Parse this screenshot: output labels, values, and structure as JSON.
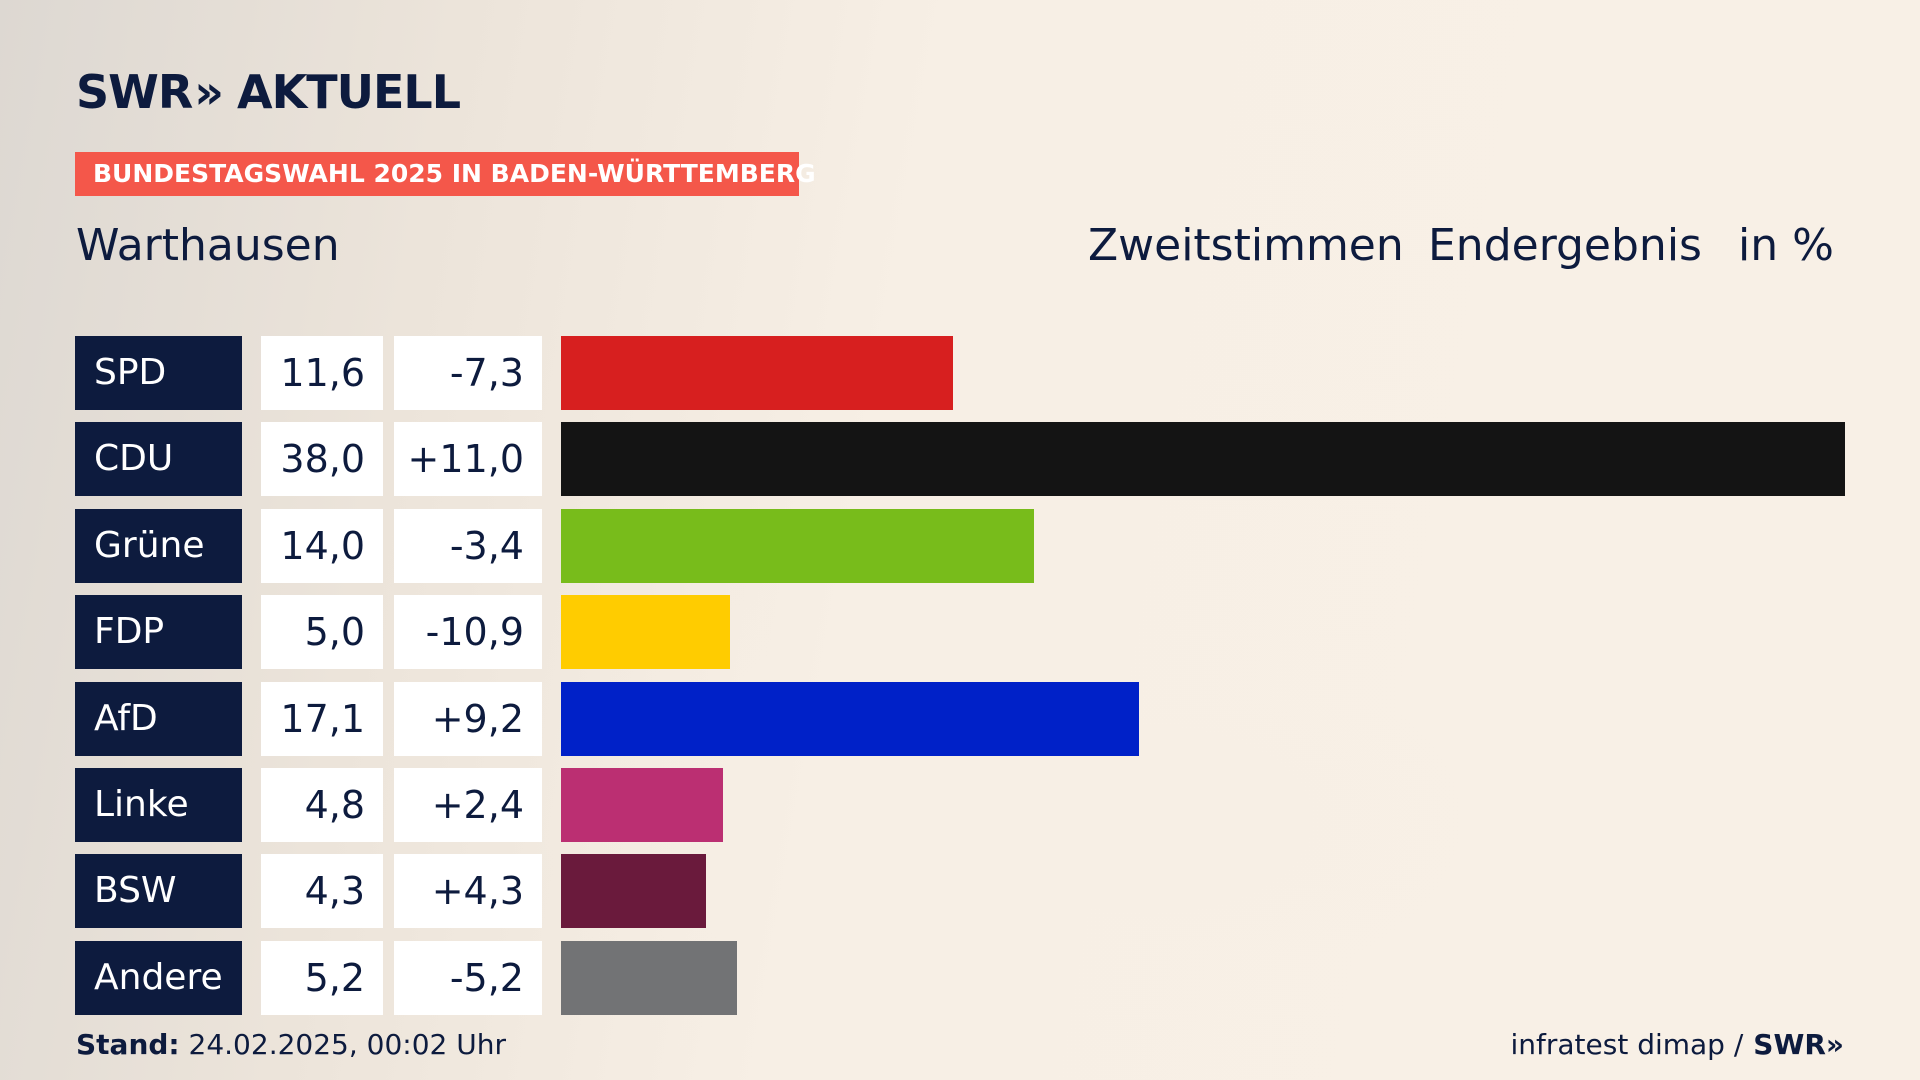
{
  "brand": {
    "name": "SWR",
    "chevrons": "»",
    "product": "AKTUELL"
  },
  "banner": "BUNDESTAGSWAHL 2025 IN BADEN-WÜRTTEMBERG",
  "place": "Warthausen",
  "headers": {
    "vote_type": "Zweitstimmen",
    "status": "Endergebnis",
    "unit": "in %"
  },
  "footer": {
    "stand_label": "Stand:",
    "stand_value": "24.02.2025, 00:02 Uhr",
    "source": "infratest dimap /",
    "source_brand": "SWR»"
  },
  "colors": {
    "navy": "#0d1b3e",
    "banner": "#f4574a"
  },
  "chart_data": {
    "type": "bar",
    "orientation": "horizontal",
    "categories": [
      "SPD",
      "CDU",
      "Grüne",
      "FDP",
      "AfD",
      "Linke",
      "BSW",
      "Andere"
    ],
    "values": [
      11.6,
      38.0,
      14.0,
      5.0,
      17.1,
      4.8,
      4.3,
      5.2
    ],
    "value_labels": [
      "11,6",
      "38,0",
      "14,0",
      "5,0",
      "17,1",
      "4,8",
      "4,3",
      "5,2"
    ],
    "diff_values": [
      -7.3,
      11.0,
      -3.4,
      -10.9,
      9.2,
      2.4,
      4.3,
      -5.2
    ],
    "diff_labels": [
      "-7,3",
      "+11,0",
      "-3,4",
      "-10,9",
      "+9,2",
      "+2,4",
      "+4,3",
      "-5,2"
    ],
    "colors": [
      "#d71f1f",
      "#141414",
      "#78bc1b",
      "#ffcc00",
      "#0021c8",
      "#bb2f72",
      "#6a1a3c",
      "#727375"
    ],
    "title": "Warthausen",
    "xlim": [
      0,
      38.0
    ]
  }
}
